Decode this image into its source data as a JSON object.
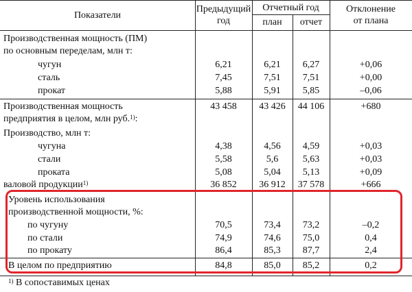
{
  "header": {
    "indicators": "Показатели",
    "prev_year_line1": "Предыдущий",
    "prev_year_line2": "год",
    "report_year": "Отчетный год",
    "plan": "план",
    "report": "отчет",
    "deviation_line1": "Отклонение",
    "deviation_line2": "от плана"
  },
  "sections": {
    "capacity_title1": "Производственная мощность (ПМ)",
    "capacity_title2": "по основным переделам, млн т:",
    "enterprise_title1": "Производственная мощность",
    "enterprise_title2": "предприятия в целом, млн руб.",
    "enterprise_sup": "1)",
    "production_title": "Производство, млн т:",
    "utilization_title1": "Уровень использования",
    "utilization_title2": "производственной мощности, %:",
    "footnote_mark": "1)",
    "footnote_text": "В сопоставимых ценах"
  },
  "rows": {
    "cast_iron": {
      "label": "чугун",
      "prev": "6,21",
      "plan": "6,21",
      "report": "6,27",
      "dev": "+0,06"
    },
    "steel": {
      "label": "сталь",
      "prev": "7,45",
      "plan": "7,51",
      "report": "7,51",
      "dev": "+0,00"
    },
    "rolled": {
      "label": "прокат",
      "prev": "5,88",
      "plan": "5,91",
      "report": "5,85",
      "dev": "–0,06"
    },
    "enterprise": {
      "prev": "43 458",
      "plan": "43 426",
      "report": "44 106",
      "dev": "+680"
    },
    "prod_cast_iron": {
      "label": "чугуна",
      "prev": "4,38",
      "plan": "4,56",
      "report": "4,59",
      "dev": "+0,03"
    },
    "prod_steel": {
      "label": "стали",
      "prev": "5,58",
      "plan": "5,6",
      "report": "5,63",
      "dev": "+0,03"
    },
    "prod_rolled": {
      "label": "проката",
      "prev": "5,08",
      "plan": "5,04",
      "report": "5,13",
      "dev": "+0,09"
    },
    "gross_output": {
      "label": "валовой продукции",
      "sup": "1)",
      "prev": "36 852",
      "plan": "36 912",
      "report": "37 578",
      "dev": "+666"
    },
    "util_cast_iron": {
      "label": "по чугуну",
      "prev": "70,5",
      "plan": "73,4",
      "report": "73,2",
      "dev": "–0,2"
    },
    "util_steel": {
      "label": "по стали",
      "prev": "74,9",
      "plan": "74,6",
      "report": "75,0",
      "dev": "0,4"
    },
    "util_rolled": {
      "label": "по прокату",
      "prev": "86,4",
      "plan": "85,3",
      "report": "87,7",
      "dev": "2,4"
    },
    "total": {
      "label": "В целом по предприятию",
      "prev": "84,8",
      "plan": "85,0",
      "report": "85,2",
      "dev": "0,2"
    }
  },
  "colors": {
    "highlight_border": "#e0252c",
    "rule_color": "#222222"
  }
}
